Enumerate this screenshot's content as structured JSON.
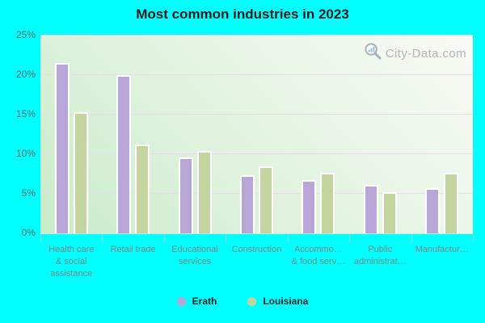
{
  "title": "Most common industries in 2023",
  "watermark": {
    "text": "City-Data.com",
    "icon": "magnifier-bars-icon"
  },
  "colors": {
    "background": "#00ffff",
    "erath_bar": "#b9a6d8",
    "louisiana_bar": "#c4d49e",
    "gridline": "#e9dcea",
    "plot_gradient_top": "#f8faf5",
    "plot_gradient_bottom": "#c8ecca"
  },
  "y_axis": {
    "ticks": [
      {
        "label": "0%",
        "value": 0
      },
      {
        "label": "5%",
        "value": 5
      },
      {
        "label": "10%",
        "value": 10
      },
      {
        "label": "15%",
        "value": 15
      },
      {
        "label": "20%",
        "value": 20
      },
      {
        "label": "25%",
        "value": 25
      }
    ],
    "max": 25
  },
  "x_axis": {
    "label_lines": [
      [
        "Health care",
        "& social",
        "assistance"
      ],
      [
        "Retail trade"
      ],
      [
        "Educational",
        "services"
      ],
      [
        "Construction"
      ],
      [
        "Accommo…",
        "& food serv…"
      ],
      [
        "Public",
        "administrat…"
      ],
      [
        "Manufactur…"
      ]
    ]
  },
  "legend": [
    {
      "label": "Erath",
      "color": "#b9a6d8"
    },
    {
      "label": "Louisiana",
      "color": "#c4d49e"
    }
  ],
  "chart_data": {
    "type": "bar",
    "title": "Most common industries in 2023",
    "categories": [
      "Health care & social assistance",
      "Retail trade",
      "Educational services",
      "Construction",
      "Accommo… & food serv…",
      "Public administrat…",
      "Manufactur…"
    ],
    "series": [
      {
        "name": "Erath",
        "color": "#b9a6d8",
        "values": [
          21.3,
          19.8,
          9.4,
          7.1,
          6.5,
          5.9,
          5.5
        ]
      },
      {
        "name": "Louisiana",
        "color": "#c4d49e",
        "values": [
          15.1,
          11.0,
          10.2,
          8.3,
          7.5,
          5.0,
          7.4
        ]
      }
    ],
    "xlabel": "",
    "ylabel": "",
    "ylim": [
      0,
      25
    ],
    "grid": true,
    "legend_position": "bottom"
  }
}
